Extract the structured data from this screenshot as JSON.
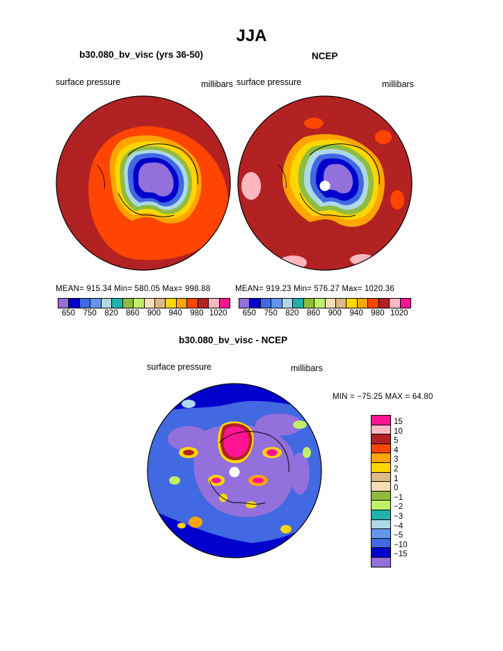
{
  "page": {
    "title": "JJA",
    "diff_title": "b30.080_bv_visc - NCEP"
  },
  "colors": {
    "abs_levels": [
      "#9370db",
      "#0000cd",
      "#4169e1",
      "#6495ed",
      "#add8e6",
      "#20b2aa",
      "#8fbc3f",
      "#c0ef6a",
      "#f5deb3",
      "#deb887",
      "#ffd700",
      "#ffa500",
      "#ff4500",
      "#b22222",
      "#ffb6c1",
      "#ff1493"
    ],
    "diff_levels": [
      "#ff1493",
      "#ffb6c1",
      "#b22222",
      "#ff4500",
      "#ffa500",
      "#ffd700",
      "#deb887",
      "#f5deb3",
      "#8fbc3f",
      "#c0ef6a",
      "#20b2aa",
      "#add8e6",
      "#6495ed",
      "#4169e1",
      "#0000cd",
      "#9370db"
    ]
  },
  "chart_data": [
    {
      "type": "heatmap",
      "title": "b30.080_bv_visc (yrs 36-50)",
      "subtitle_left": "surface pressure",
      "subtitle_right": "millibars",
      "stats": "MEAN= 915.34   Min= 580.05   Max= 998.88",
      "legend_ticks": [
        "650",
        "750",
        "820",
        "860",
        "900",
        "940",
        "980",
        "1020"
      ]
    },
    {
      "type": "heatmap",
      "title": "NCEP",
      "subtitle_left": "surface pressure",
      "subtitle_right": "millibars",
      "stats": "MEAN= 919.23   Min= 576.27   Max= 1020.36",
      "legend_ticks": [
        "650",
        "750",
        "820",
        "860",
        "900",
        "940",
        "980",
        "1020"
      ]
    },
    {
      "type": "heatmap",
      "title": "b30.080_bv_visc - NCEP",
      "subtitle_left": "surface pressure",
      "subtitle_right": "millibars",
      "stats": "MIN = −75.25 MAX =   64.80",
      "legend_labels": [
        "15",
        "10",
        "5",
        "4",
        "3",
        "2",
        "1",
        "0",
        "−1",
        "−2",
        "−3",
        "−4",
        "−5",
        "−10",
        "−15"
      ]
    }
  ]
}
